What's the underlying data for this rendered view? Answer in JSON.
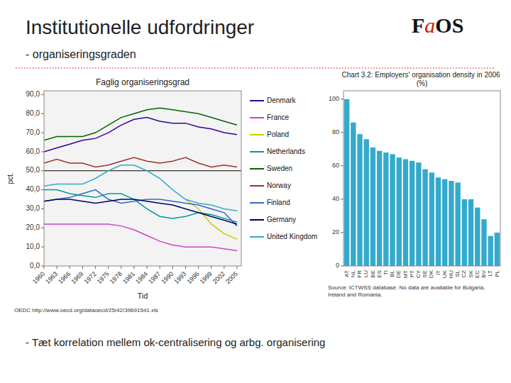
{
  "title": "Institutionelle udfordringer",
  "subtitle": "-  organiseringsgraden",
  "annotations": [
    "FaOS",
    "- Tæt korrelation mellem ok-centralisering og arbg. organisering"
  ],
  "chart_data": [
    {
      "type": "line",
      "title": "Faglig organiseringsgrad",
      "x_label": "Tid",
      "y_label": "pct.",
      "x": [
        1960,
        1963,
        1966,
        1969,
        1972,
        1975,
        1978,
        1981,
        1984,
        1987,
        1990,
        1993,
        1996,
        1999,
        2002,
        2005
      ],
      "xlim": [
        1960,
        2006
      ],
      "xticks": [
        1960,
        1963,
        1966,
        1969,
        1972,
        1975,
        1978,
        1981,
        1984,
        1987,
        1990,
        1993,
        1996,
        1999,
        2002,
        2005
      ],
      "ylim": [
        0,
        92
      ],
      "yticks": [
        {
          "value": 0,
          "label": "0,0"
        },
        {
          "value": 10,
          "label": "10,0"
        },
        {
          "value": 20,
          "label": "20,0"
        },
        {
          "value": 30,
          "label": "30,0"
        },
        {
          "value": 40,
          "label": "40,0"
        },
        {
          "value": 50,
          "label": "50,0"
        },
        {
          "value": 60,
          "label": "60,0"
        },
        {
          "value": 70,
          "label": "70,0"
        },
        {
          "value": 80,
          "label": "80,0"
        },
        {
          "value": 90,
          "label": "90,0"
        }
      ],
      "hline": 50,
      "grid": false,
      "legend": "right",
      "series": [
        {
          "name": "Denmark",
          "color": "#330099",
          "values": [
            60,
            62,
            64,
            66,
            67,
            70,
            74,
            77,
            78,
            76,
            75,
            75,
            73,
            72,
            70,
            69
          ]
        },
        {
          "name": "France",
          "color": "#cc44cc",
          "values": [
            22,
            22,
            22,
            22,
            22,
            22,
            21,
            19,
            16,
            13,
            11,
            10,
            10,
            10,
            9,
            8
          ]
        },
        {
          "name": "Poland",
          "color": "#cccc00",
          "values": [
            null,
            null,
            null,
            null,
            null,
            null,
            null,
            null,
            null,
            null,
            null,
            35,
            30,
            22,
            17,
            14
          ]
        },
        {
          "name": "Netherlands",
          "color": "#009999",
          "values": [
            40,
            40,
            38,
            37,
            36,
            38,
            38,
            35,
            30,
            26,
            25,
            26,
            28,
            27,
            25,
            23
          ]
        },
        {
          "name": "Sweden",
          "color": "#006600",
          "values": [
            66,
            68,
            68,
            68,
            70,
            74,
            78,
            80,
            82,
            83,
            82,
            81,
            80,
            78,
            76,
            74
          ]
        },
        {
          "name": "Norway",
          "color": "#993333",
          "values": [
            54,
            56,
            54,
            54,
            52,
            53,
            55,
            57,
            55,
            54,
            55,
            57,
            54,
            52,
            53,
            52
          ]
        },
        {
          "name": "Finland",
          "color": "#3366cc",
          "values": [
            34,
            35,
            36,
            38,
            40,
            35,
            33,
            34,
            35,
            35,
            34,
            33,
            32,
            30,
            28,
            21
          ]
        },
        {
          "name": "Germany",
          "color": "#000066",
          "values": [
            34,
            35,
            35,
            34,
            33,
            34,
            35,
            35,
            34,
            33,
            32,
            30,
            28,
            26,
            24,
            22
          ]
        },
        {
          "name": "United Kingdom",
          "color": "#33aacc",
          "values": [
            42,
            43,
            43,
            43,
            46,
            50,
            53,
            53,
            50,
            46,
            40,
            35,
            33,
            32,
            30,
            29
          ]
        }
      ],
      "annotations": [
        "OEDC http://www.oecd.org/dataoecd/25/42/39691541.xls"
      ]
    },
    {
      "type": "bar",
      "title": "Chart 3.2: Employers' organisation density in 2006 (%)",
      "categories": [
        "AT",
        "NL",
        "FR",
        "LU",
        "BE",
        "ES",
        "TI",
        "BL",
        "DE",
        "MT",
        "PT",
        "CY",
        "SE",
        "DK",
        "IT",
        "UK",
        "HU",
        "SL",
        "CZ",
        "SK",
        "EC",
        "BV",
        "LT",
        "PL"
      ],
      "values": [
        100,
        86,
        79,
        76,
        71,
        69,
        68,
        67,
        65,
        64,
        63,
        62,
        58,
        56,
        53,
        52,
        51,
        50,
        40,
        40,
        35,
        28,
        18,
        20
      ],
      "color": "#33aacc",
      "ylim": [
        0,
        105
      ],
      "yticks": [
        0,
        20,
        40,
        60,
        80,
        100
      ],
      "grid": false,
      "annotations": [
        "Source: ICTWSS database. No data are available for Bulgaria, Ireland and Romania."
      ]
    }
  ]
}
